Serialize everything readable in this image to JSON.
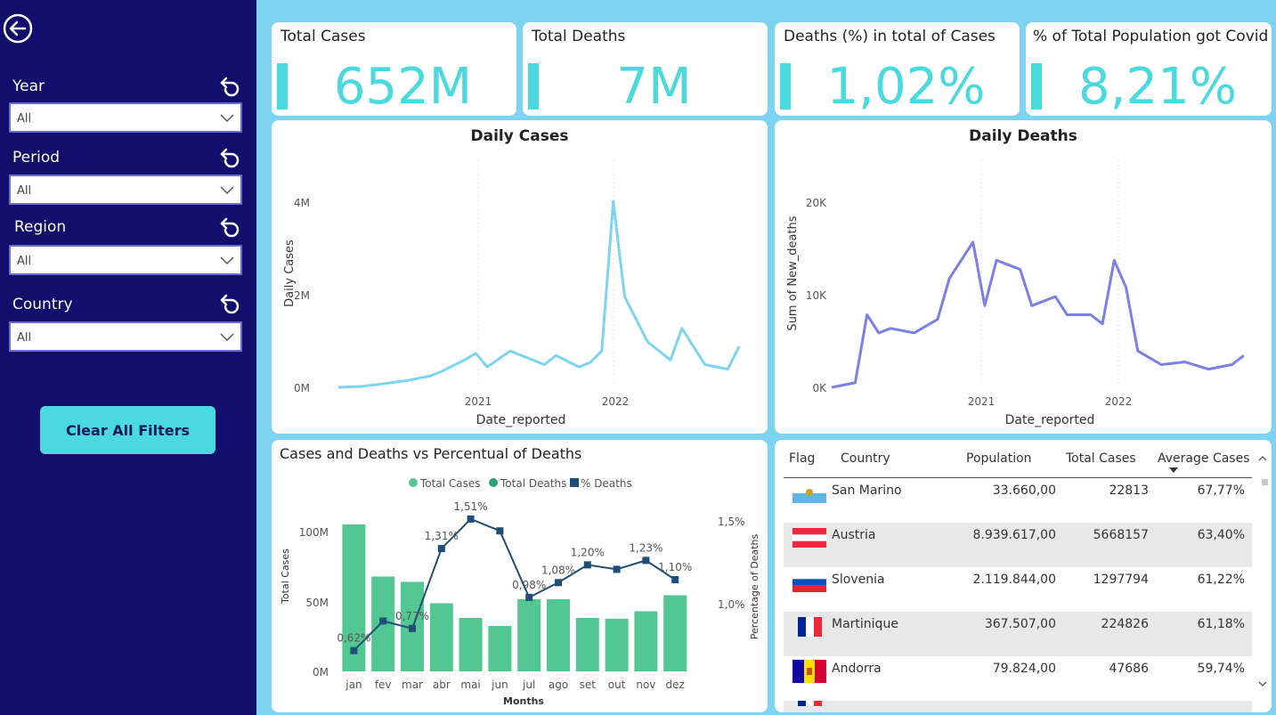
{
  "sidebar": {
    "filters": [
      {
        "label": "Year",
        "value": "All"
      },
      {
        "label": "Period",
        "value": "All"
      },
      {
        "label": "Region",
        "value": "All"
      },
      {
        "label": "Country",
        "value": "All"
      }
    ],
    "clear_label": "Clear All Filters"
  },
  "kpis": [
    {
      "title": "Total Cases",
      "value": "652M"
    },
    {
      "title": "Total Deaths",
      "value": "7M"
    },
    {
      "title": "Deaths (%) in total of Cases",
      "value": "1,02%"
    },
    {
      "title": "% of Total Population got Covid",
      "value": "8,21%"
    }
  ],
  "chart_data": [
    {
      "type": "line",
      "title": "Daily Cases",
      "xlabel": "Date_reported",
      "ylabel": "Daily Cases",
      "x_ticks": [
        "2021",
        "2022"
      ],
      "y_ticks": [
        "0M",
        "2M",
        "4M"
      ],
      "ylim": [
        0,
        4200000
      ],
      "color": "#7dd3f2",
      "x": [
        "2020-01",
        "2020-03",
        "2020-05",
        "2020-07",
        "2020-09",
        "2020-10",
        "2020-12",
        "2021-01",
        "2021-02",
        "2021-04",
        "2021-05",
        "2021-07",
        "2021-08",
        "2021-10",
        "2021-11",
        "2021-12",
        "2022-01",
        "2022-02",
        "2022-04",
        "2022-06",
        "2022-07",
        "2022-09",
        "2022-11",
        "2022-12"
      ],
      "values": [
        0,
        20000,
        80000,
        150000,
        250000,
        350000,
        600000,
        750000,
        450000,
        800000,
        700000,
        500000,
        700000,
        450000,
        550000,
        800000,
        4100000,
        2000000,
        1000000,
        600000,
        1300000,
        500000,
        400000,
        900000
      ]
    },
    {
      "type": "line",
      "title": "Daily Deaths",
      "xlabel": "Date_reported",
      "ylabel": "Sum of New_deaths",
      "x_ticks": [
        "2021",
        "2022"
      ],
      "y_ticks": [
        "0K",
        "10K",
        "20K"
      ],
      "ylim": [
        0,
        21000
      ],
      "color": "#7b7fe8",
      "x": [
        "2020-01",
        "2020-03",
        "2020-04",
        "2020-05",
        "2020-06",
        "2020-08",
        "2020-10",
        "2020-11",
        "2021-01",
        "2021-02",
        "2021-03",
        "2021-05",
        "2021-06",
        "2021-08",
        "2021-09",
        "2021-11",
        "2021-12",
        "2022-01",
        "2022-02",
        "2022-03",
        "2022-05",
        "2022-07",
        "2022-09",
        "2022-11",
        "2022-12"
      ],
      "values": [
        0,
        500,
        8000,
        6000,
        6500,
        6000,
        7500,
        12000,
        16000,
        9000,
        14000,
        13000,
        9000,
        10000,
        8000,
        8000,
        7000,
        14000,
        11000,
        4000,
        2500,
        2800,
        2000,
        2500,
        3500
      ]
    },
    {
      "type": "bar",
      "title": "Cases and Deaths vs Percentual of Deaths",
      "legend": [
        "Total Cases",
        "Total Deaths",
        "% Deaths"
      ],
      "xlabel": "Months",
      "ylabel": "Total Cases",
      "y2label": "Percentage of Deaths",
      "categories": [
        "jan",
        "fev",
        "mar",
        "abr",
        "mai",
        "jun",
        "jul",
        "ago",
        "set",
        "out",
        "nov",
        "dez"
      ],
      "series": [
        {
          "name": "Total Cases",
          "values": [
            110000000,
            71000000,
            67000000,
            51000000,
            40000000,
            34000000,
            54000000,
            54000000,
            40000000,
            39500000,
            45000000,
            57000000
          ]
        },
        {
          "name": "% Deaths",
          "values": [
            0.62,
            0.82,
            0.77,
            1.31,
            1.51,
            1.43,
            0.98,
            1.08,
            1.2,
            1.17,
            1.23,
            1.1
          ]
        }
      ],
      "point_labels": [
        "0,62%",
        "",
        "0,77%",
        "1,31%",
        "1,51%",
        "",
        "0,98%",
        "1,08%",
        "1,20%",
        "",
        "1,23%",
        "1,10%"
      ],
      "y_ticks": [
        "0M",
        "50M",
        "100M"
      ],
      "ylim": [
        0,
        120000000
      ],
      "y2_ticks": [
        "1,0%",
        "1,5%"
      ],
      "y2lim": [
        0.6,
        1.6
      ],
      "bar_color": "#52c791",
      "line_color": "#1f4e79"
    }
  ],
  "table": {
    "headers": [
      "Flag",
      "Country",
      "Population",
      "Total Cases",
      "Average Cases"
    ],
    "rows": [
      {
        "country": "San Marino",
        "population": "33.660,00",
        "cases": "22813",
        "avg": "67,77%"
      },
      {
        "country": "Austria",
        "population": "8.939.617,00",
        "cases": "5668157",
        "avg": "63,40%"
      },
      {
        "country": "Slovenia",
        "population": "2.119.844,00",
        "cases": "1297794",
        "avg": "61,22%"
      },
      {
        "country": "Martinique",
        "population": "367.507,00",
        "cases": "224826",
        "avg": "61,18%"
      },
      {
        "country": "Andorra",
        "population": "79.824,00",
        "cases": "47686",
        "avg": "59,74%"
      }
    ]
  },
  "colors": {
    "sidebar": "#120e6b",
    "background": "#7dd3f2",
    "accent": "#4ad9de",
    "deaths_line": "#7b7fe8"
  }
}
